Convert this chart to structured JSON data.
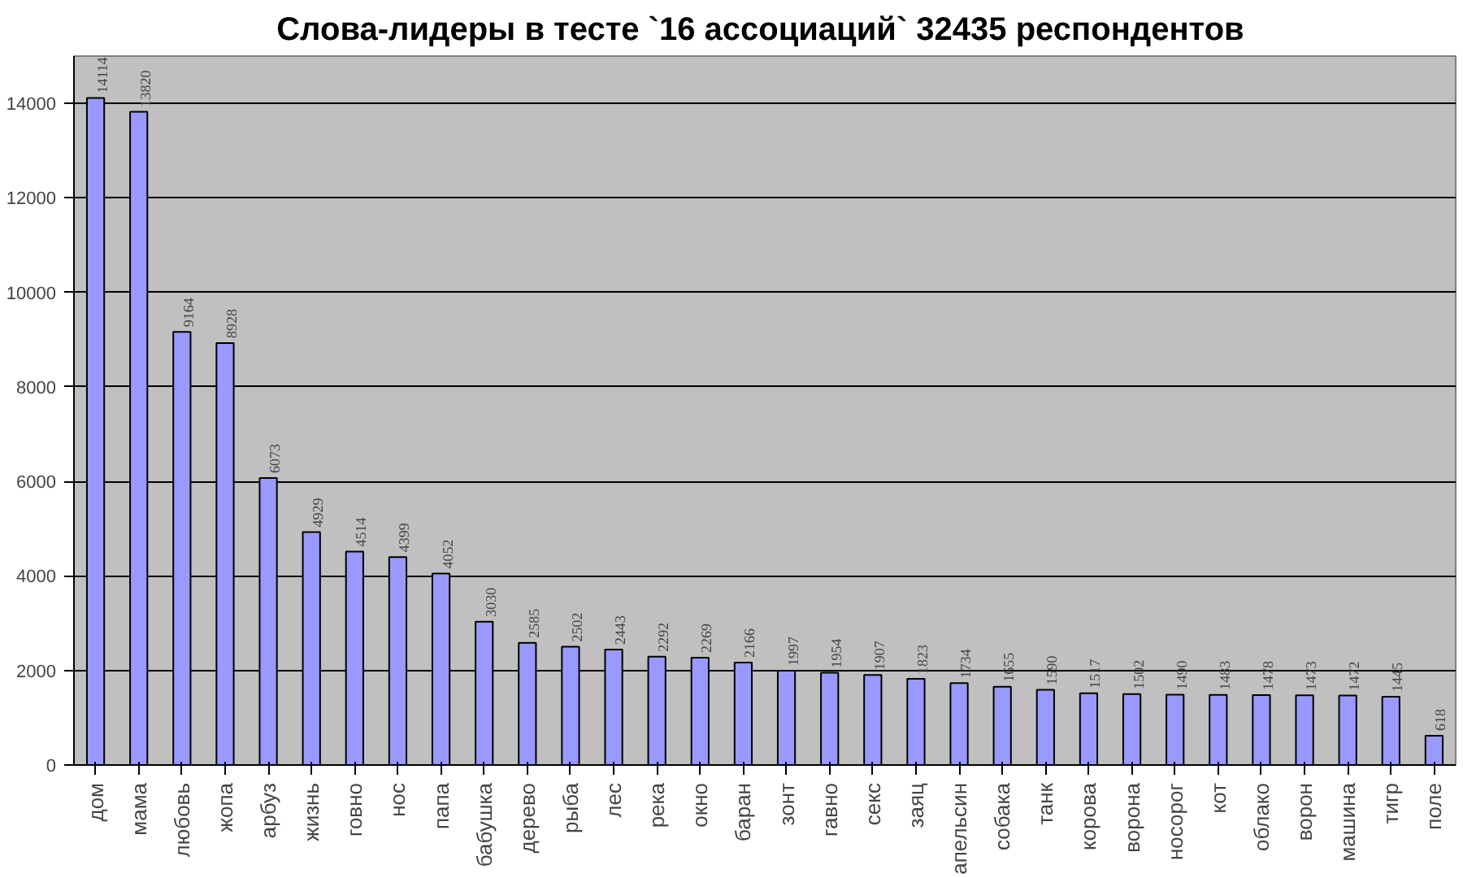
{
  "chart_data": {
    "type": "bar",
    "title": "Слова-лидеры в тесте `16 ассоциаций`  32435 респондентов",
    "categories": [
      "дом",
      "мама",
      "любовь",
      "жопа",
      "арбуз",
      "жизнь",
      "говно",
      "нос",
      "папа",
      "бабушка",
      "дерево",
      "рыба",
      "лес",
      "река",
      "окно",
      "баран",
      "зонт",
      "гавно",
      "секс",
      "заяц",
      "апельсин",
      "собака",
      "танк",
      "корова",
      "ворона",
      "носорог",
      "кот",
      "облако",
      "ворон",
      "машина",
      "тигр",
      "поле"
    ],
    "values": [
      14114,
      13820,
      9164,
      8928,
      6073,
      4929,
      4514,
      4399,
      4052,
      3030,
      2585,
      2502,
      2443,
      2292,
      2269,
      2166,
      1997,
      1954,
      1907,
      1823,
      1734,
      1655,
      1590,
      1517,
      1502,
      1490,
      1483,
      1478,
      1473,
      1472,
      1445,
      618
    ],
    "color": "#9999ff",
    "ylim": [
      0,
      15000
    ],
    "yticks": [
      0,
      2000,
      4000,
      6000,
      8000,
      10000,
      12000,
      14000
    ],
    "grid": "y",
    "data_labels": true
  }
}
